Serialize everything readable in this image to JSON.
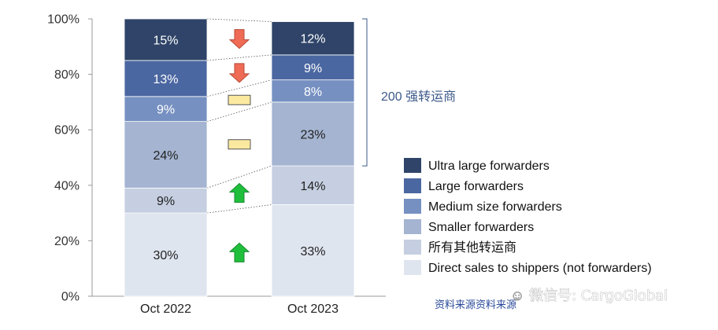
{
  "chart_data": {
    "type": "bar",
    "stacked": true,
    "categories": [
      "Oct 2022",
      "Oct 2023"
    ],
    "ylim": [
      0,
      100
    ],
    "yticks": [
      "0%",
      "20%",
      "40%",
      "60%",
      "80%",
      "100%"
    ],
    "grid": false,
    "series": [
      {
        "name": "Direct sales to shippers (not forwarders)",
        "values": [
          30,
          33
        ],
        "labels": [
          "30%",
          "33%"
        ],
        "color": "#dfe5ef",
        "text_color": "#222222"
      },
      {
        "name": "所有其他转运商",
        "values": [
          9,
          14
        ],
        "labels": [
          "9%",
          "14%"
        ],
        "color": "#c5cfe1",
        "text_color": "#222222"
      },
      {
        "name": "Smaller forwarders",
        "values": [
          24,
          23
        ],
        "labels": [
          "24%",
          "23%"
        ],
        "color": "#a4b4d1",
        "text_color": "#222222"
      },
      {
        "name": "Medium size forwarders",
        "values": [
          9,
          8
        ],
        "labels": [
          "9%",
          "8%"
        ],
        "color": "#7690c1",
        "text_color": "#ffffff"
      },
      {
        "name": "Large forwarders",
        "values": [
          13,
          9
        ],
        "labels": [
          "13%",
          "9%"
        ],
        "color": "#4b67a1",
        "text_color": "#ffffff"
      },
      {
        "name": "Ultra large forwarders",
        "values": [
          15,
          12
        ],
        "labels": [
          "15%",
          "12%"
        ],
        "color": "#2f4468",
        "text_color": "#ffffff"
      }
    ],
    "trend_markers": [
      "up-arrow",
      "up-arrow",
      "flat-dash",
      "flat-dash",
      "down-arrow",
      "down-arrow"
    ],
    "bracket": {
      "label": "200 强转运商",
      "from_value": 47,
      "to_value": 100
    },
    "legend_position": "right"
  },
  "colors": {
    "up": "#1fbf3c",
    "down": "#ef6b55",
    "flat": "#fce9a0",
    "bracket": "#3d5a8a"
  },
  "source": "资料来源资料来源",
  "watermark": "微信号: CargoGlobal"
}
